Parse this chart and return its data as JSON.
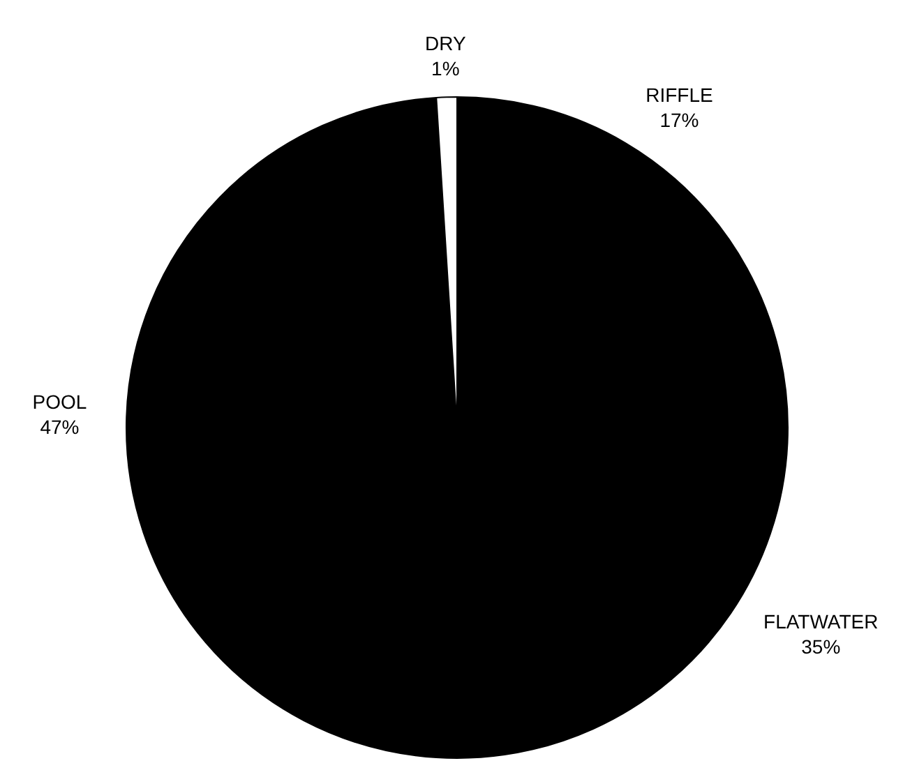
{
  "chart_data": {
    "type": "pie",
    "categories": [
      "RIFFLE",
      "FLATWATER",
      "POOL",
      "DRY"
    ],
    "values": [
      17,
      35,
      47,
      1
    ],
    "colors": [
      "#000000",
      "#000000",
      "#000000",
      "#ffffff"
    ],
    "value_labels": [
      "17%",
      "35%",
      "47%",
      "1%"
    ],
    "legend": false
  }
}
